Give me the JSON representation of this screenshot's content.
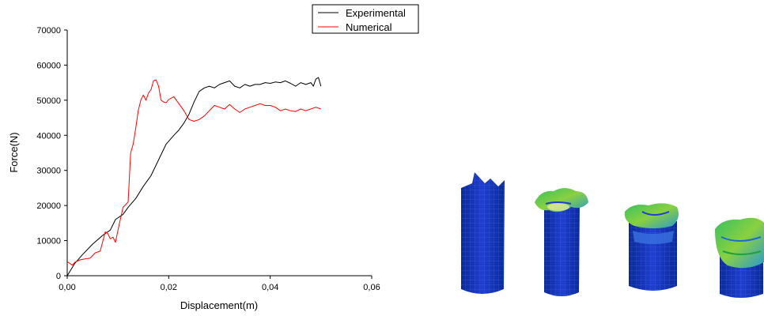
{
  "chart_data": {
    "type": "line",
    "xlabel": "Displacement(m)",
    "ylabel": "Force(N)",
    "xlim": [
      0,
      0.06
    ],
    "ylim": [
      0,
      70000
    ],
    "x_ticks": [
      "0,00",
      "0,02",
      "0,04",
      "0,06"
    ],
    "y_ticks": [
      "0",
      "10000",
      "20000",
      "30000",
      "40000",
      "50000",
      "60000",
      "70000"
    ],
    "grid": false,
    "legend_position": "top-right",
    "series": [
      {
        "name": "Experimental",
        "color": "#000000",
        "x": [
          0.0,
          0.0015,
          0.003,
          0.005,
          0.007,
          0.0085,
          0.0095,
          0.011,
          0.012,
          0.0135,
          0.015,
          0.0165,
          0.018,
          0.0195,
          0.021,
          0.022,
          0.023,
          0.024,
          0.025,
          0.026,
          0.027,
          0.028,
          0.029,
          0.03,
          0.031,
          0.032,
          0.033,
          0.034,
          0.035,
          0.036,
          0.037,
          0.038,
          0.039,
          0.04,
          0.041,
          0.042,
          0.043,
          0.044,
          0.045,
          0.046,
          0.047,
          0.048,
          0.0485,
          0.049,
          0.0495,
          0.05
        ],
        "y": [
          0,
          3500,
          6000,
          9000,
          11500,
          13000,
          16000,
          17500,
          19500,
          22000,
          25500,
          28500,
          33000,
          37500,
          40000,
          41500,
          43500,
          46000,
          49500,
          52500,
          53500,
          54000,
          53500,
          54500,
          55000,
          55500,
          54000,
          53500,
          54500,
          54000,
          54500,
          54500,
          55000,
          54800,
          55200,
          55000,
          55500,
          54800,
          54000,
          55000,
          54500,
          55000,
          54000,
          56000,
          56500,
          54000
        ]
      },
      {
        "name": "Numerical",
        "color": "#ff0000",
        "x": [
          0.0,
          0.0005,
          0.001,
          0.0015,
          0.0025,
          0.0035,
          0.0045,
          0.0055,
          0.0065,
          0.0075,
          0.008,
          0.0085,
          0.009,
          0.0095,
          0.01,
          0.011,
          0.012,
          0.0125,
          0.013,
          0.0135,
          0.014,
          0.0145,
          0.015,
          0.0155,
          0.016,
          0.0165,
          0.017,
          0.0175,
          0.018,
          0.0185,
          0.019,
          0.0195,
          0.02,
          0.021,
          0.022,
          0.023,
          0.024,
          0.025,
          0.026,
          0.027,
          0.028,
          0.029,
          0.03,
          0.031,
          0.032,
          0.033,
          0.034,
          0.035,
          0.036,
          0.037,
          0.038,
          0.039,
          0.04,
          0.041,
          0.042,
          0.043,
          0.044,
          0.045,
          0.046,
          0.047,
          0.048,
          0.049,
          0.05
        ],
        "y": [
          4000,
          3500,
          3000,
          3800,
          4500,
          4800,
          5000,
          6500,
          7000,
          12500,
          12000,
          10500,
          11000,
          9500,
          13000,
          19500,
          21000,
          35000,
          37500,
          42000,
          47000,
          50000,
          51500,
          50000,
          52000,
          53000,
          55500,
          55800,
          54000,
          50000,
          49500,
          49300,
          50200,
          51000,
          49000,
          47000,
          44500,
          44000,
          44500,
          45500,
          47000,
          48500,
          48000,
          47500,
          48800,
          47500,
          46500,
          47500,
          48000,
          48500,
          49000,
          48500,
          48500,
          48000,
          47000,
          47500,
          47000,
          46800,
          47500,
          47000,
          47500,
          48000,
          47500
        ]
      }
    ]
  },
  "illustration": {
    "description": "simulated tube crushing sequence",
    "specimen_icons": [
      "undeformed-tube",
      "early-fold-tube",
      "mid-crush-tube",
      "late-crush-tube"
    ]
  }
}
